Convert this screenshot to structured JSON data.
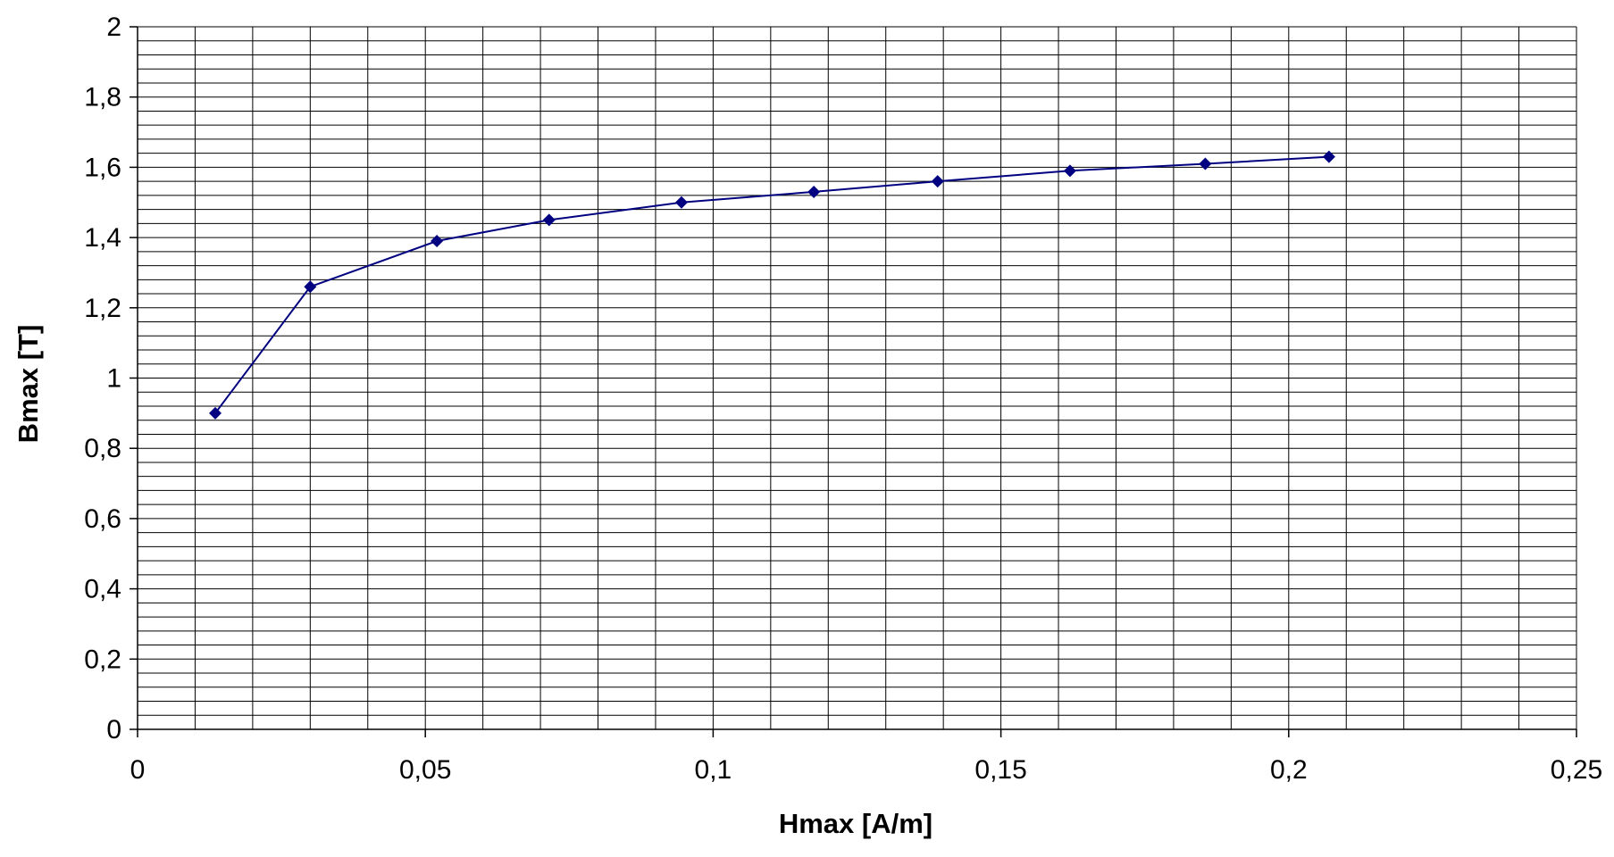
{
  "chart_data": {
    "type": "line",
    "title": "",
    "xlabel": "Hmax [A/m]",
    "ylabel": "Bmax [T]",
    "xlim": [
      0,
      0.25
    ],
    "ylim": [
      0,
      2
    ],
    "x_ticks": [
      0,
      0.05,
      0.1,
      0.15,
      0.2,
      0.25
    ],
    "x_tick_labels": [
      "0",
      "0,05",
      "0,1",
      "0,15",
      "0,2",
      "0,25"
    ],
    "y_ticks": [
      0,
      0.2,
      0.4,
      0.6,
      0.8,
      1,
      1.2,
      1.4,
      1.6,
      1.8,
      2
    ],
    "y_tick_labels": [
      "0",
      "0,2",
      "0,4",
      "0,6",
      "0,8",
      "1",
      "1,2",
      "1,4",
      "1,6",
      "1,8",
      "2"
    ],
    "x_minor_step": 0.01,
    "y_minor_step": 0.04,
    "grid": true,
    "legend": "none",
    "colors": {
      "series": "#000080",
      "grid": "#000000",
      "axis": "#000000"
    },
    "marker": "diamond",
    "series": [
      {
        "x": [
          0.0135,
          0.03,
          0.052,
          0.0715,
          0.0945,
          0.1175,
          0.139,
          0.162,
          0.1855,
          0.207
        ],
        "y": [
          0.9,
          1.26,
          1.39,
          1.45,
          1.5,
          1.53,
          1.56,
          1.59,
          1.61,
          1.63
        ]
      }
    ]
  }
}
